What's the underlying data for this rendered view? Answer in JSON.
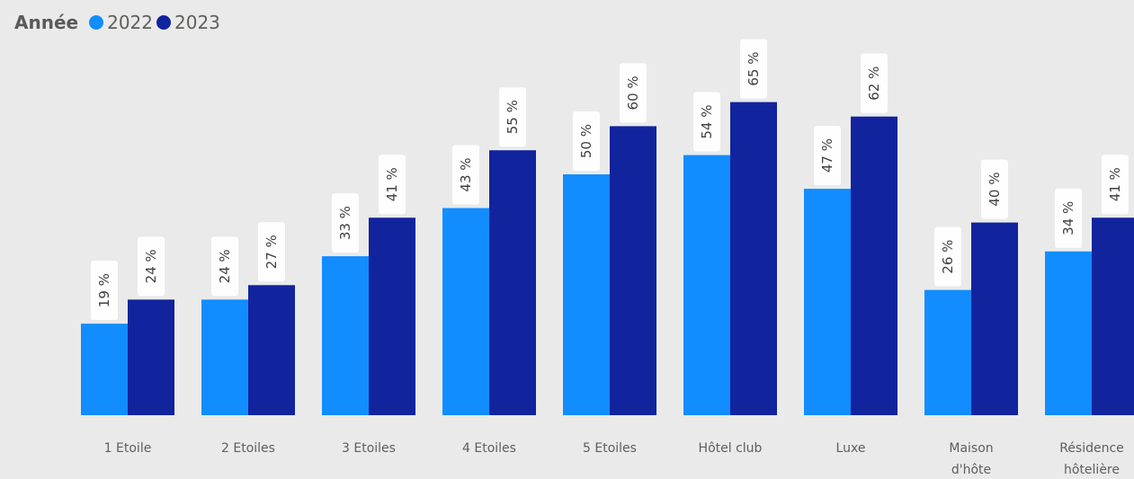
{
  "legend": {
    "title": "Année",
    "items": [
      {
        "label": "2022",
        "color": "#118dff"
      },
      {
        "label": "2023",
        "color": "#12239e"
      }
    ]
  },
  "chart_data": {
    "type": "bar",
    "title": "",
    "xlabel": "",
    "ylabel": "",
    "ylim": [
      0,
      70
    ],
    "grid": false,
    "legend_position": "top-left",
    "value_suffix": " %",
    "categories": [
      [
        "1 Etoile"
      ],
      [
        "2 Etoiles"
      ],
      [
        "3 Etoiles"
      ],
      [
        "4 Etoiles"
      ],
      [
        "5 Etoiles"
      ],
      [
        "Hôtel club"
      ],
      [
        "Luxe"
      ],
      [
        "Maison",
        "d'hôte"
      ],
      [
        "Résidence",
        "hôtelière"
      ]
    ],
    "series": [
      {
        "name": "2022",
        "color": "#118dff",
        "values": [
          19,
          24,
          33,
          43,
          50,
          54,
          47,
          26,
          34
        ]
      },
      {
        "name": "2023",
        "color": "#12239e",
        "values": [
          24,
          27,
          41,
          55,
          60,
          65,
          62,
          40,
          41
        ]
      }
    ]
  }
}
